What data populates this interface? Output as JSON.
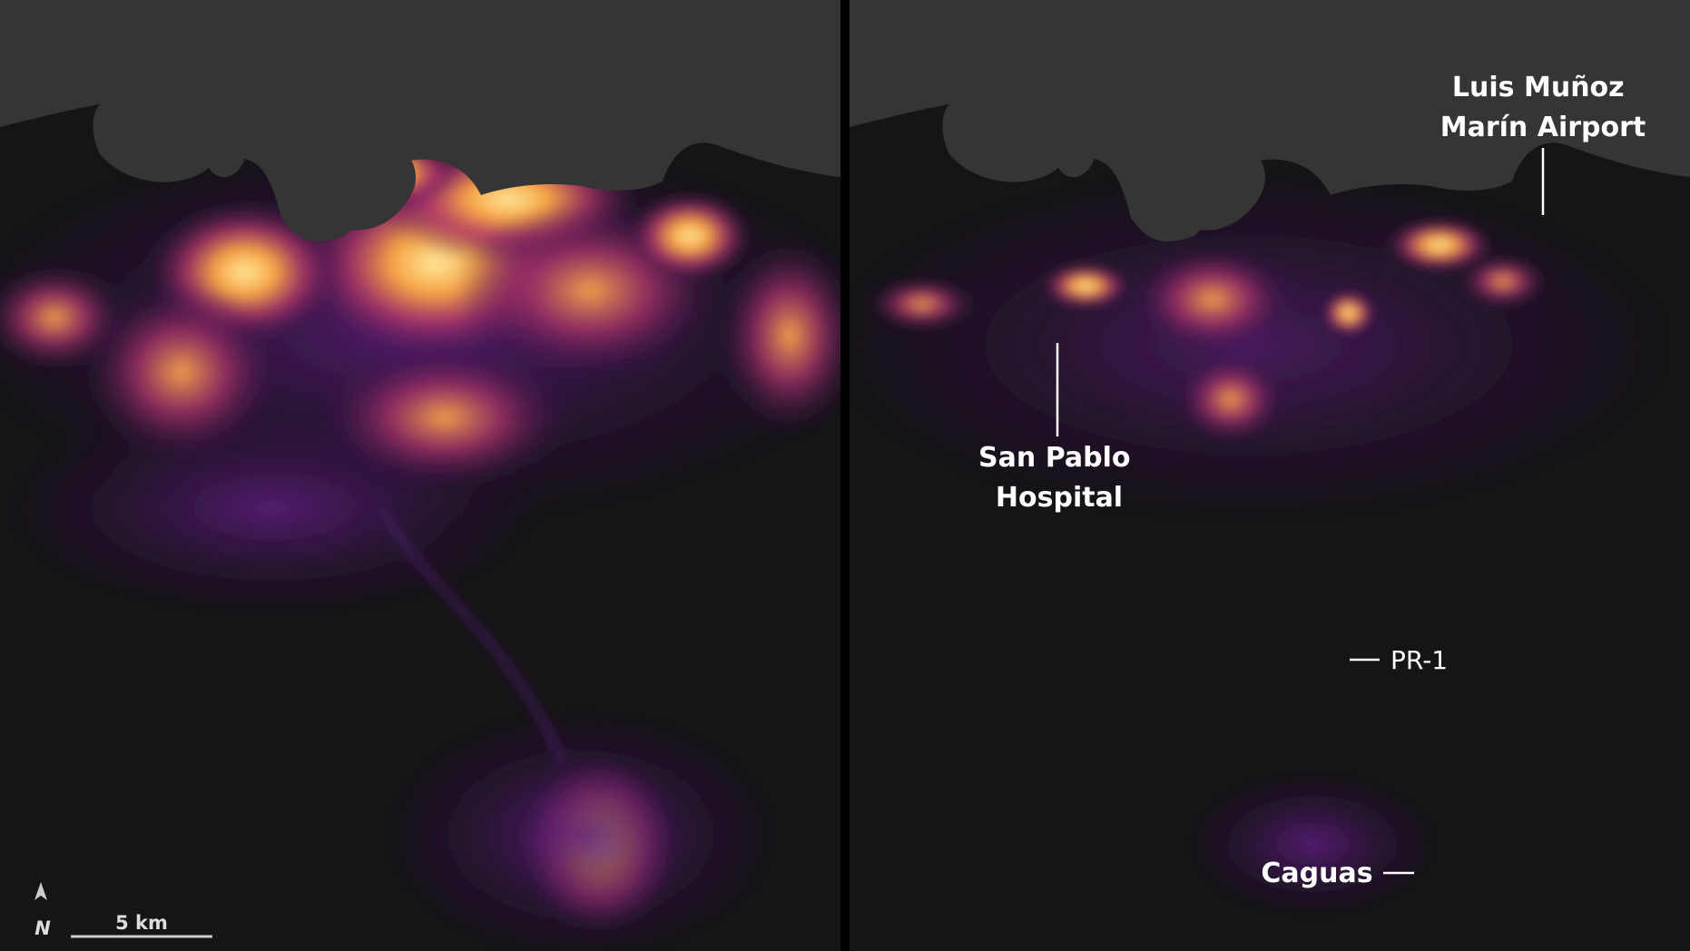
{
  "labels": {
    "airport": [
      "Luis Muñoz",
      "Marín Airport"
    ],
    "hospital": [
      "San Pablo",
      "Hospital"
    ],
    "highway": "PR-1",
    "city": "Caguas"
  },
  "scale_bar": "5 km",
  "north": "N"
}
